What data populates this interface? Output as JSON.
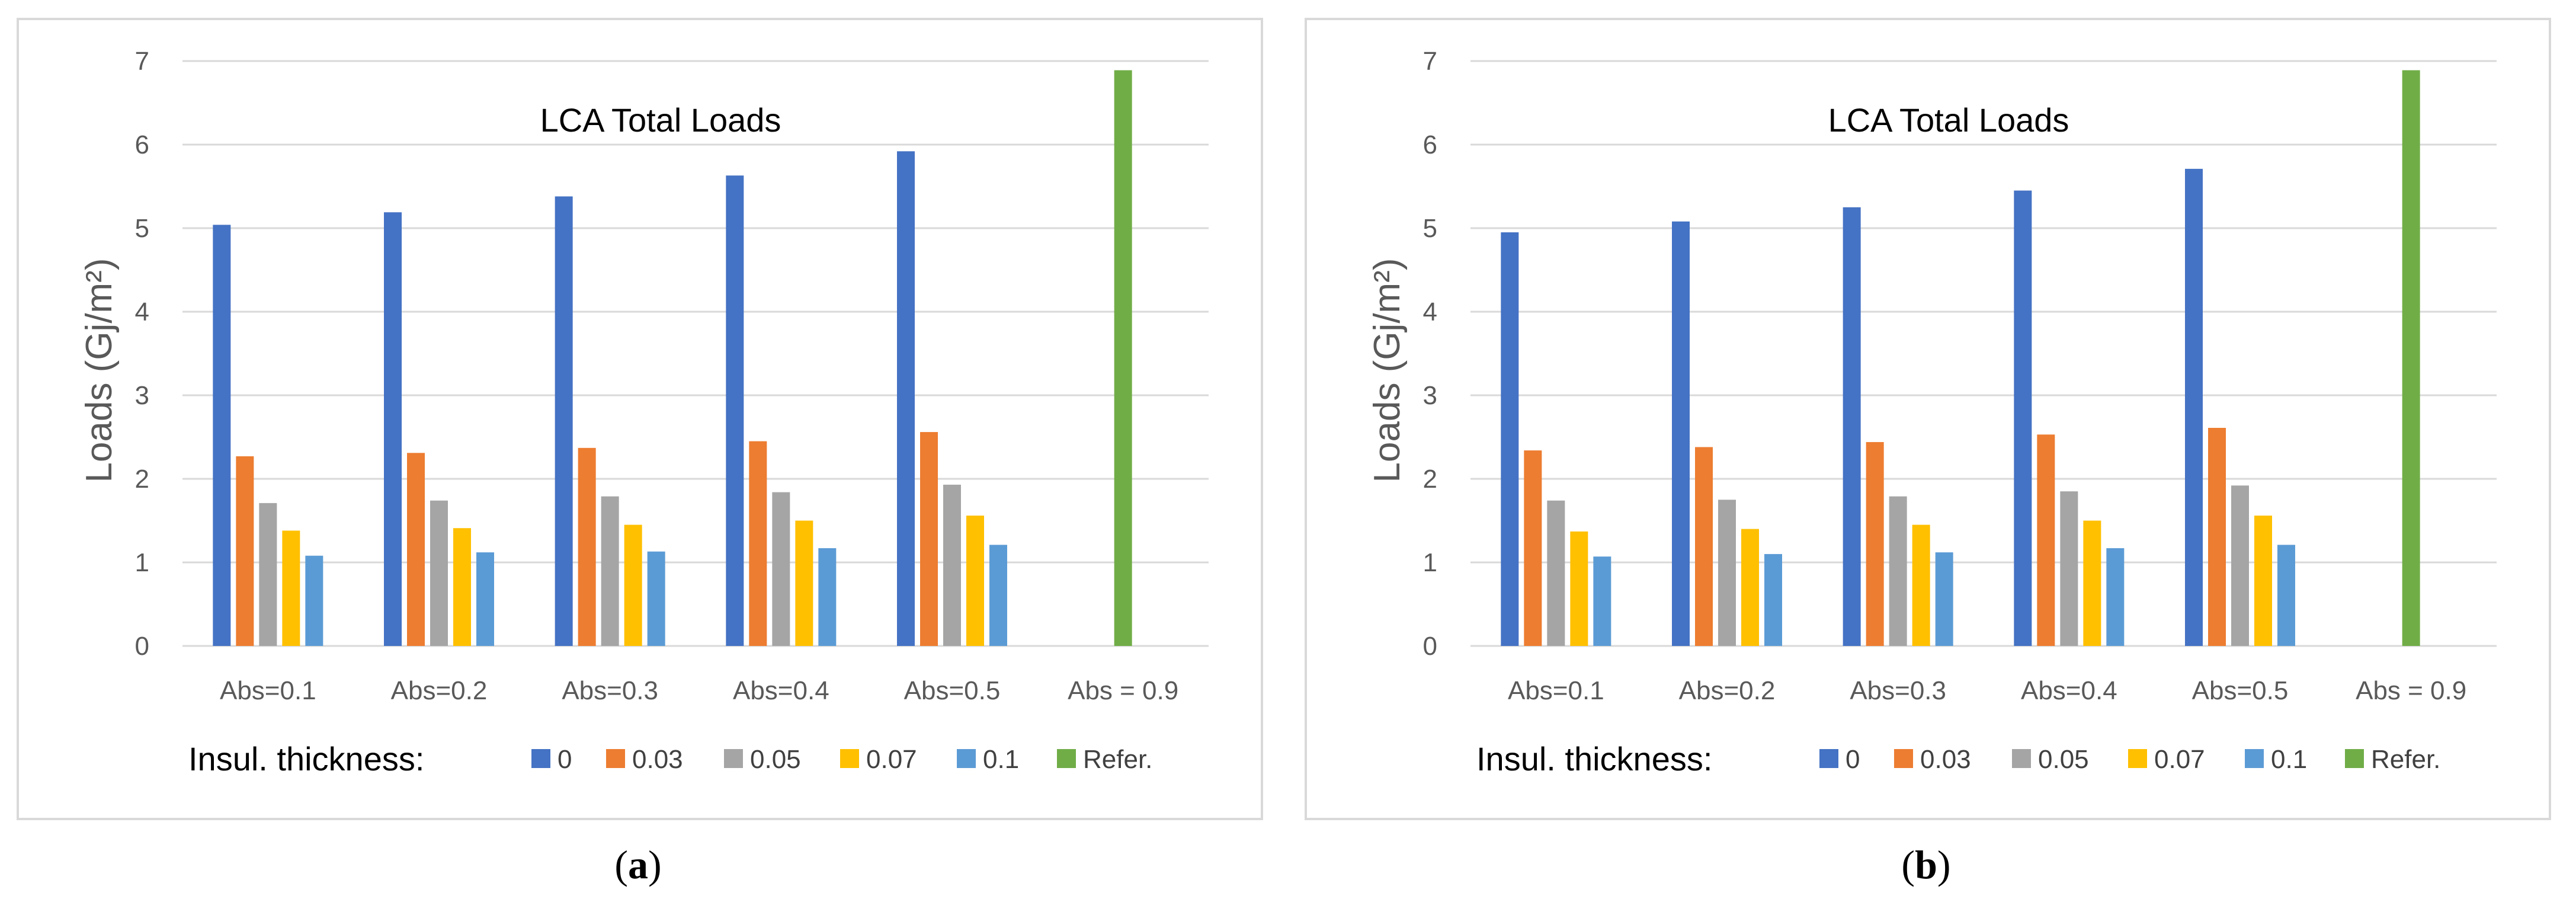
{
  "chart_data": [
    {
      "type": "bar",
      "panel_label": "a",
      "title": "LCA Total Loads",
      "ylabel": "Loads (Gj/m²)",
      "xlabel": "",
      "ylim": [
        0,
        7
      ],
      "yticks": [
        0,
        1,
        2,
        3,
        4,
        5,
        6,
        7
      ],
      "grid": true,
      "categories": [
        "Abs=0.1",
        "Abs=0.2",
        "Abs=0.3",
        "Abs=0.4",
        "Abs=0.5",
        "Abs = 0.9"
      ],
      "legend_title": "Insul. thickness:",
      "legend_position": "bottom",
      "series": [
        {
          "name": "0",
          "color": "#4472C4",
          "values": [
            5.04,
            5.19,
            5.38,
            5.63,
            5.92,
            null
          ]
        },
        {
          "name": "0.03",
          "color": "#ED7D31",
          "values": [
            2.27,
            2.31,
            2.37,
            2.45,
            2.56,
            null
          ]
        },
        {
          "name": "0.05",
          "color": "#A5A5A5",
          "values": [
            1.71,
            1.74,
            1.79,
            1.84,
            1.93,
            null
          ]
        },
        {
          "name": "0.07",
          "color": "#FFC000",
          "values": [
            1.38,
            1.41,
            1.45,
            1.5,
            1.56,
            null
          ]
        },
        {
          "name": "0.1",
          "color": "#5B9BD5",
          "values": [
            1.08,
            1.12,
            1.13,
            1.17,
            1.21,
            null
          ]
        },
        {
          "name": "Refer.",
          "color": "#70AD47",
          "values": [
            null,
            null,
            null,
            null,
            null,
            6.89
          ]
        }
      ]
    },
    {
      "type": "bar",
      "panel_label": "b",
      "title": "LCA Total Loads",
      "ylabel": "Loads (Gj/m²)",
      "xlabel": "",
      "ylim": [
        0,
        7
      ],
      "yticks": [
        0,
        1,
        2,
        3,
        4,
        5,
        6,
        7
      ],
      "grid": true,
      "categories": [
        "Abs=0.1",
        "Abs=0.2",
        "Abs=0.3",
        "Abs=0.4",
        "Abs=0.5",
        "Abs = 0.9"
      ],
      "legend_title": "Insul. thickness:",
      "legend_position": "bottom",
      "series": [
        {
          "name": "0",
          "color": "#4472C4",
          "values": [
            4.95,
            5.08,
            5.25,
            5.45,
            5.71,
            null
          ]
        },
        {
          "name": "0.03",
          "color": "#ED7D31",
          "values": [
            2.34,
            2.38,
            2.44,
            2.53,
            2.61,
            null
          ]
        },
        {
          "name": "0.05",
          "color": "#A5A5A5",
          "values": [
            1.74,
            1.75,
            1.79,
            1.85,
            1.92,
            null
          ]
        },
        {
          "name": "0.07",
          "color": "#FFC000",
          "values": [
            1.37,
            1.4,
            1.45,
            1.5,
            1.56,
            null
          ]
        },
        {
          "name": "0.1",
          "color": "#5B9BD5",
          "values": [
            1.07,
            1.1,
            1.12,
            1.17,
            1.21,
            null
          ]
        },
        {
          "name": "Refer.",
          "color": "#70AD47",
          "values": [
            null,
            null,
            null,
            null,
            null,
            6.89
          ]
        }
      ]
    }
  ]
}
